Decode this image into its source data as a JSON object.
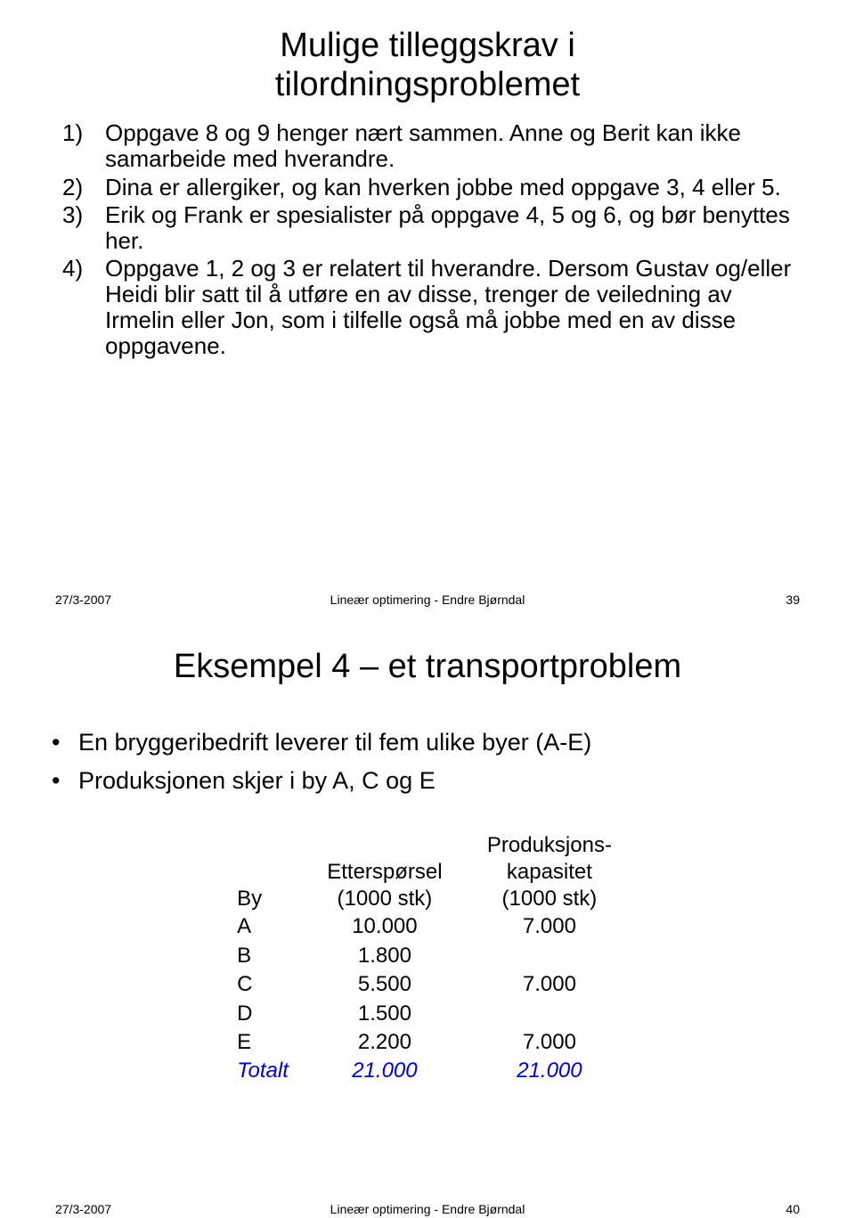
{
  "slide1": {
    "title_line1": "Mulige tilleggskrav i",
    "title_line2": "tilordningsproblemet",
    "items": [
      {
        "num": "1)",
        "text": "Oppgave 8 og 9 henger nært sammen. Anne og  Berit kan ikke samarbeide med hverandre."
      },
      {
        "num": "2)",
        "text": "Dina er allergiker, og kan hverken jobbe med oppgave 3, 4 eller 5."
      },
      {
        "num": "3)",
        "text": "Erik og Frank er spesialister på oppgave 4, 5 og 6, og bør benyttes her."
      },
      {
        "num": "4)",
        "text": "Oppgave 1, 2 og 3 er relatert til hverandre. Dersom Gustav og/eller Heidi blir satt til å utføre en av disse, trenger de veiledning av Irmelin eller Jon, som i tilfelle også må jobbe med en av disse oppgavene."
      }
    ],
    "footer": {
      "date": "27/3-2007",
      "center": "Lineær optimering - Endre Bjørndal",
      "page": "39"
    }
  },
  "slide2": {
    "title": "Eksempel 4 – et transportproblem",
    "bullets": [
      "En bryggeribedrift leverer til fem ulike byer (A-E)",
      "Produksjonen skjer i by A, C og E"
    ],
    "table": {
      "header": {
        "by": "By",
        "demand_l1": "Etterspørsel",
        "demand_l2": "(1000 stk)",
        "cap_l1": "Produksjons-",
        "cap_l2": "kapasitet",
        "cap_l3": "(1000 stk)"
      },
      "rows": [
        {
          "by": "A",
          "demand": "10.000",
          "cap": "7.000"
        },
        {
          "by": "B",
          "demand": "1.800",
          "cap": ""
        },
        {
          "by": "C",
          "demand": "5.500",
          "cap": "7.000"
        },
        {
          "by": "D",
          "demand": "1.500",
          "cap": ""
        },
        {
          "by": "E",
          "demand": "2.200",
          "cap": "7.000"
        }
      ],
      "totals": {
        "label": "Totalt",
        "demand": "21.000",
        "cap": "21.000"
      }
    },
    "footer": {
      "date": "27/3-2007",
      "center": "Lineær optimering - Endre Bjørndal",
      "page": "40"
    }
  },
  "colors": {
    "text": "#000000",
    "totals": "#0000cc",
    "background": "#ffffff"
  }
}
